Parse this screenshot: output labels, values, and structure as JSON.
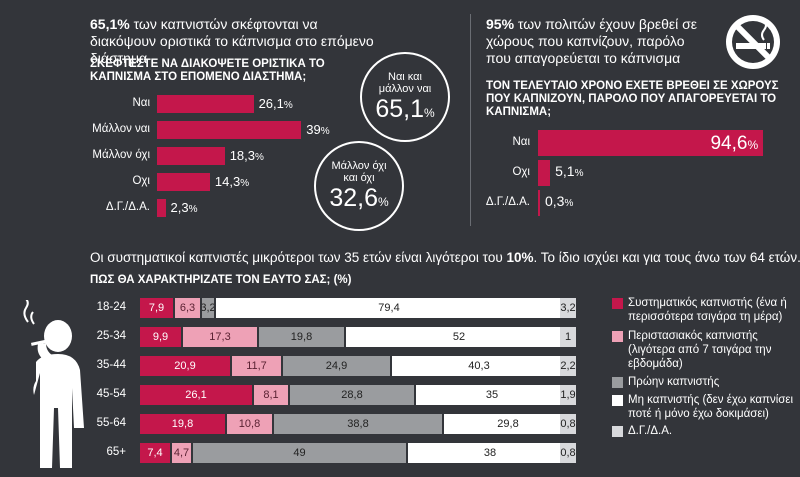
{
  "left_panel": {
    "headline_bold": "65,1%",
    "headline_rest": " των καπνιστών σκέφτονται να διακόψουν οριστικά το κάπνισμα στο επόμενο διάστημα",
    "question": "ΣΚΕΦΤΕΣΤΕ ΝΑ ΔΙΑΚΟΨΕΤΕ ΟΡΙΣΤΙΚΑ ΤΟ ΚΑΠΝΙΣΜΑ ΣΤΟ ΕΠΟΜΕΝΟ ΔΙΑΣΤΗΜΑ;",
    "circle1": {
      "label": "Ναι και μάλλον ναι",
      "value": "65,1",
      "unit": "%"
    },
    "circle2": {
      "label": "Μάλλον όχι και όχι",
      "value": "32,6",
      "unit": "%"
    }
  },
  "right_panel": {
    "headline_bold": "95%",
    "headline_rest": " των πολιτών έχουν βρεθεί σε χώρους που καπνίζουν, παρόλο που απαγορεύεται το κάπνισμα",
    "question": "ΤΟΝ ΤΕΛΕΥΤΑΙΟ ΧΡΟΝΟ ΕΧΕΤΕ ΒΡΕΘΕΙ ΣΕ ΧΩΡΟΥΣ ΠΟΥ ΚΑΠΝΙΖΟΥΝ, ΠΑΡΟΛΟ ΠΟΥ ΑΠΑΓΟΡΕΥΕΤΑΙ ΤΟ ΚΑΠΝΙΣΜΑ;",
    "icon": "no-smoking-icon"
  },
  "bottom_panel": {
    "headline_pre": "Οι συστηματικοί καπνιστές μικρότεροι των 35 ετών είναι λιγότεροι του ",
    "headline_bold": "10%",
    "headline_post": ". Το ίδιο ισχύει και για τους άνω των 64 ετών.",
    "question": "ΠΩΣ ΘΑ ΧΑΡΑΚΤΗΡΙΖΑΤΕ ΤΟΝ ΕΑΥΤΟ ΣΑΣ; (%)",
    "icon": "smoker-silhouette-icon"
  },
  "colors": {
    "background": "#33353a",
    "crimson": "#c4174b",
    "pink": "#eea1b6",
    "grey": "#9a9c9f",
    "white": "#ffffff",
    "light_grey": "#d8d9dc"
  },
  "chart_data": [
    {
      "type": "bar",
      "orientation": "horizontal",
      "categories": [
        "Ναι",
        "Μάλλον ναι",
        "Μάλλον όχι",
        "Οχι",
        "Δ.Γ./Δ.Α."
      ],
      "values": [
        26.1,
        39,
        18.3,
        14.3,
        2.3
      ],
      "value_labels": [
        "26,1",
        "39",
        "18,3",
        "14,3",
        "2,3"
      ],
      "unit": "%",
      "title": "ΣΚΕΦΤΕΣΤΕ ΝΑ ΔΙΑΚΟΨΕΤΕ ΟΡΙΣΤΙΚΑ ΤΟ ΚΑΠΝΙΣΜΑ ΣΤΟ ΕΠΟΜΕΝΟ ΔΙΑΣΤΗΜΑ;"
    },
    {
      "type": "bar",
      "orientation": "horizontal",
      "categories": [
        "Ναι",
        "Οχι",
        "Δ.Γ./Δ.Α."
      ],
      "values": [
        94.6,
        5.1,
        0.3
      ],
      "value_labels": [
        "94,6",
        "5,1",
        "0,3"
      ],
      "unit": "%",
      "title": "ΤΟΝ ΤΕΛΕΥΤΑΙΟ ΧΡΟΝΟ ΕΧΕΤΕ ΒΡΕΘΕΙ ΣΕ ΧΩΡΟΥΣ ΠΟΥ ΚΑΠΝΙΖΟΥΝ, ΠΑΡΟΛΟ ΠΟΥ ΑΠΑΓΟΡΕΥΕΤΑΙ ΤΟ ΚΑΠΝΙΣΜΑ;"
    },
    {
      "type": "bar",
      "orientation": "horizontal",
      "stacked": true,
      "title": "ΠΩΣ ΘΑ ΧΑΡΑΚΤΗΡΙΖΑΤΕ ΤΟΝ ΕΑΥΤΟ ΣΑΣ; (%)",
      "categories": [
        "18-24",
        "25-34",
        "35-44",
        "45-54",
        "55-64",
        "65+"
      ],
      "series": [
        {
          "name": "Συστηματικός καπνιστής (ένα ή περισσότερα τσιγάρα τη μέρα)",
          "color": "#c4174b",
          "values": [
            7.9,
            9.9,
            20.9,
            26.1,
            19.8,
            7.4
          ],
          "labels": [
            "7,9",
            "9,9",
            "20,9",
            "26,1",
            "19,8",
            "7,4"
          ]
        },
        {
          "name": "Περιστασιακός καπνιστής (λιγότερα από 7 τσιγάρα την εβδομάδα)",
          "color": "#eea1b6",
          "values": [
            6.3,
            17.3,
            11.7,
            8.1,
            10.8,
            4.7
          ],
          "labels": [
            "6,3",
            "17,3",
            "11,7",
            "8,1",
            "10,8",
            "4,7"
          ]
        },
        {
          "name": "Πρώην καπνιστής",
          "color": "#9a9c9f",
          "values": [
            3.2,
            19.8,
            24.9,
            28.8,
            38.8,
            49
          ],
          "labels": [
            "3,2",
            "19,8",
            "24,9",
            "28,8",
            "38,8",
            "49"
          ]
        },
        {
          "name": "Μη καπνιστής (δεν έχω καπνίσει ποτέ ή μόνο έχω δοκιμάσει)",
          "color": "#ffffff",
          "values": [
            79.4,
            52,
            40.3,
            35,
            29.8,
            38
          ],
          "labels": [
            "79,4",
            "52",
            "40,3",
            "35",
            "29,8",
            "38"
          ]
        },
        {
          "name": "Δ.Γ./Δ.Α.",
          "color": "#d8d9dc",
          "values": [
            3.2,
            1,
            2.2,
            1.9,
            0.8,
            0.8
          ],
          "labels": [
            "3,2",
            "1",
            "2,2",
            "1,9",
            "0,8",
            "0,8"
          ]
        }
      ]
    }
  ]
}
